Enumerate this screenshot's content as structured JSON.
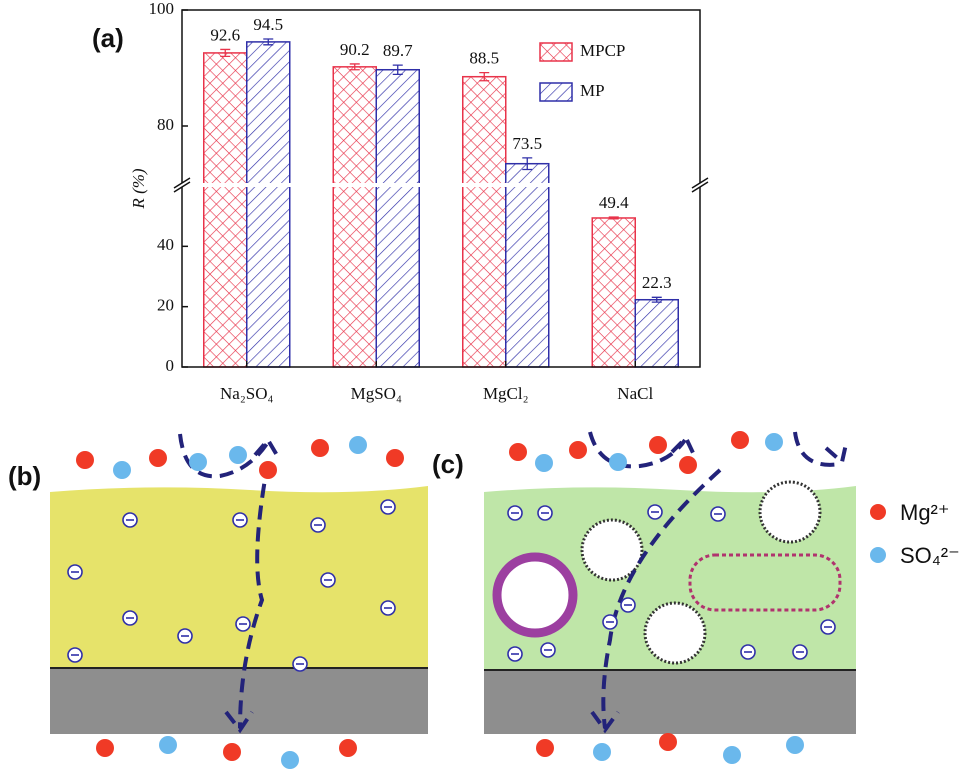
{
  "panels": {
    "a": "(a)",
    "b": "(b)",
    "c": "(c)"
  },
  "ion_legend": [
    "Mg²⁺",
    "SO₄²⁻"
  ],
  "chart_data": {
    "type": "bar",
    "ylabel": "R (%)",
    "categories": [
      "Na₂SO₄",
      "MgSO₄",
      "MgCl₂",
      "NaCl"
    ],
    "series": [
      {
        "name": "MPCP",
        "color": "#e8334a",
        "values": [
          92.6,
          90.2,
          88.5,
          49.4
        ],
        "errors": [
          0.6,
          0.5,
          0.7,
          0.3
        ]
      },
      {
        "name": "MP",
        "color": "#2f2fa8",
        "values": [
          94.5,
          89.7,
          73.5,
          22.3
        ],
        "errors": [
          0.5,
          0.8,
          1.0,
          0.8
        ]
      }
    ],
    "ylim": [
      0,
      100
    ],
    "ybreak": [
      60,
      70
    ],
    "yticks": [
      0,
      20,
      40,
      80,
      100
    ],
    "legend": "upper right"
  }
}
